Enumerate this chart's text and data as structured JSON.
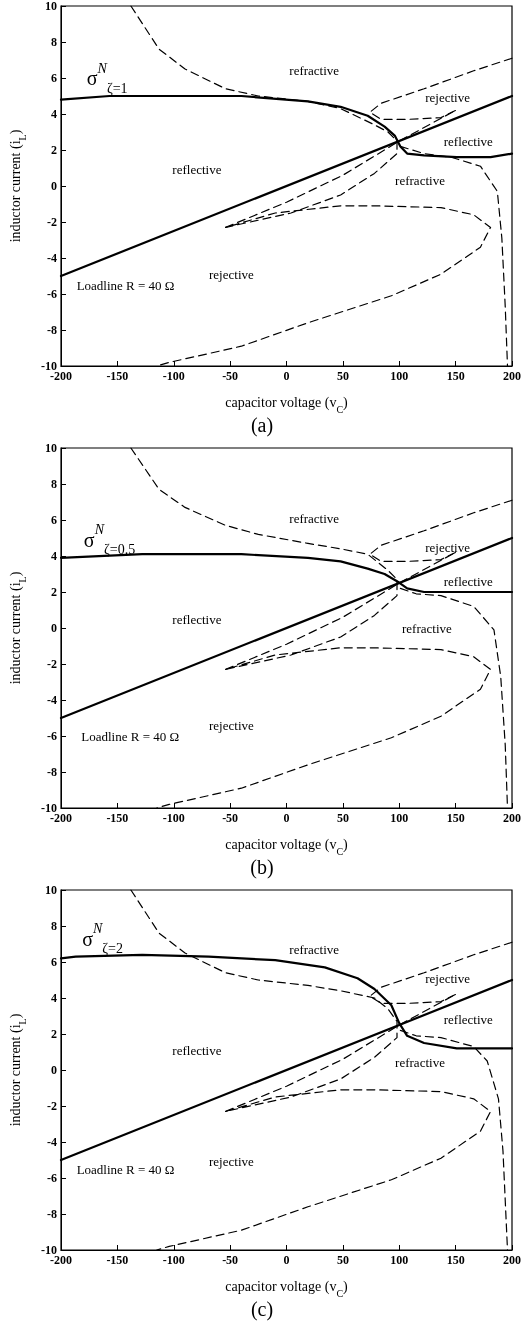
{
  "chart_data": [
    {
      "type": "line",
      "title": "(a)",
      "xlabel": "capacitor voltage (v$_{C}$)",
      "ylabel": "inductor current (i$_{L}$)",
      "xlim": [
        -200,
        200
      ],
      "ylim": [
        -10,
        10
      ],
      "xticks": [
        -200,
        -150,
        -100,
        -50,
        0,
        50,
        100,
        150,
        200
      ],
      "yticks": [
        -10,
        -8,
        -6,
        -4,
        -2,
        0,
        2,
        4,
        6,
        8,
        10
      ],
      "grid": false,
      "marker": "none",
      "series": [
        {
          "color": "#000000",
          "line_style": "solid",
          "x": [
            -200,
            200
          ],
          "values": [
            -5,
            5
          ]
        },
        {
          "color": "#000000",
          "line_style": "solid",
          "x": [
            -200,
            -157,
            -98,
            -40,
            19,
            48,
            72,
            87,
            96,
            101,
            107,
            122,
            151,
            181,
            200
          ],
          "values": [
            4.8,
            5.0,
            5.0,
            5.0,
            4.7,
            4.4,
            3.9,
            3.3,
            2.8,
            2.2,
            1.8,
            1.7,
            1.6,
            1.6,
            1.8
          ]
        },
        {
          "color": "#000000",
          "line_style": "dashed",
          "x": [
            -138,
            -113,
            -90,
            -54,
            -25,
            19,
            48,
            78,
            90,
            98,
            98,
            78,
            48,
            4,
            -54,
            -10,
            48,
            78,
            137,
            166,
            181,
            172,
            137,
            93,
            19,
            -40,
            -104,
            -115
          ],
          "values": [
            10,
            7.6,
            6.5,
            5.4,
            5.0,
            4.7,
            4.3,
            3.4,
            3.0,
            2.5,
            1.8,
            0.7,
            -0.5,
            -1.5,
            -2.3,
            -1.5,
            -1.1,
            -1.1,
            -1.2,
            -1.6,
            -2.3,
            -3.4,
            -4.9,
            -6.1,
            -7.6,
            -8.9,
            -9.8,
            -10
          ]
        },
        {
          "color": "#000000",
          "line_style": "dashed",
          "x": [
            -54,
            0,
            50,
            100,
            150
          ],
          "values": [
            -2.3,
            -0.9,
            0.6,
            2.5,
            4.2
          ]
        },
        {
          "color": "#000000",
          "line_style": "dashed",
          "x": [
            200,
            166,
            122,
            84,
            74,
            84,
            107,
            137,
            150
          ],
          "values": [
            7.1,
            6.4,
            5.4,
            4.6,
            4.1,
            3.7,
            3.7,
            3.8,
            4.2
          ]
        },
        {
          "color": "#000000",
          "line_style": "dashed",
          "x": [
            101,
            122,
            146,
            172,
            187,
            191,
            194,
            196
          ],
          "values": [
            2.2,
            1.8,
            1.6,
            1.1,
            -0.3,
            -2.9,
            -6.7,
            -10
          ]
        }
      ],
      "annotations": [
        "σ$^{N}$$_{ζ=1}$",
        "refractive",
        "rejective",
        "reflective",
        "reflective",
        "refractive",
        "rejective",
        "Loadline R = 40 Ω"
      ]
    },
    {
      "type": "line",
      "title": "(b)",
      "xlabel": "capacitor voltage (v$_{C}$)",
      "ylabel": "inductor current (i$_{L}$)",
      "xlim": [
        -200,
        200
      ],
      "ylim": [
        -10,
        10
      ],
      "xticks": [
        -200,
        -150,
        -100,
        -50,
        0,
        50,
        100,
        150,
        200
      ],
      "yticks": [
        -10,
        -8,
        -6,
        -4,
        -2,
        0,
        2,
        4,
        6,
        8,
        10
      ],
      "grid": false,
      "marker": "none",
      "series": [
        {
          "color": "#000000",
          "line_style": "solid",
          "x": [
            -200,
            200
          ],
          "values": [
            -5,
            5
          ]
        },
        {
          "color": "#000000",
          "line_style": "solid",
          "x": [
            -200,
            -128,
            -40,
            19,
            48,
            72,
            87,
            98,
            107,
            122,
            151,
            200
          ],
          "values": [
            3.9,
            4.1,
            4.1,
            3.9,
            3.7,
            3.3,
            3.0,
            2.6,
            2.2,
            2.0,
            2.0,
            2.0
          ]
        },
        {
          "color": "#000000",
          "line_style": "dashed",
          "x": [
            -138,
            -113,
            -90,
            -54,
            -25,
            19,
            48,
            72,
            90,
            98,
            98,
            78,
            48,
            4,
            -54,
            -10,
            48,
            78,
            137,
            166,
            181,
            172,
            137,
            93,
            19,
            -40,
            -104,
            -115
          ],
          "values": [
            10,
            7.7,
            6.7,
            5.7,
            5.2,
            4.7,
            4.4,
            4.1,
            3.2,
            2.7,
            1.8,
            0.7,
            -0.5,
            -1.5,
            -2.3,
            -1.5,
            -1.1,
            -1.1,
            -1.2,
            -1.6,
            -2.3,
            -3.4,
            -4.9,
            -6.1,
            -7.6,
            -8.9,
            -9.8,
            -10
          ]
        },
        {
          "color": "#000000",
          "line_style": "dashed",
          "x": [
            -54,
            0,
            50,
            100,
            150
          ],
          "values": [
            -2.3,
            -0.9,
            0.6,
            2.5,
            4.2
          ]
        },
        {
          "color": "#000000",
          "line_style": "dashed",
          "x": [
            200,
            166,
            122,
            84,
            74,
            84,
            107,
            137,
            150
          ],
          "values": [
            7.1,
            6.4,
            5.4,
            4.6,
            4.1,
            3.7,
            3.7,
            3.8,
            4.2
          ]
        },
        {
          "color": "#000000",
          "line_style": "dashed",
          "x": [
            101,
            115,
            137,
            166,
            184,
            190,
            194,
            196
          ],
          "values": [
            2.2,
            1.9,
            1.8,
            1.2,
            -0.1,
            -2.7,
            -6.5,
            -10
          ]
        }
      ],
      "annotations": [
        "σ$^{N}$$_{ζ=0.5}$",
        "refractive",
        "rejective",
        "reflective",
        "reflective",
        "refractive",
        "rejective",
        "Loadline R = 40 Ω"
      ]
    },
    {
      "type": "line",
      "title": "(c)",
      "xlabel": "capacitor voltage (v$_{C}$)",
      "ylabel": "inductor current (i$_{L}$)",
      "xlim": [
        -200,
        200
      ],
      "ylim": [
        -10,
        10
      ],
      "xticks": [
        -200,
        -150,
        -100,
        -50,
        0,
        50,
        100,
        150,
        200
      ],
      "yticks": [
        -10,
        -8,
        -6,
        -4,
        -2,
        0,
        2,
        4,
        6,
        8,
        10
      ],
      "grid": false,
      "marker": "none",
      "series": [
        {
          "color": "#000000",
          "line_style": "solid",
          "x": [
            -200,
            200
          ],
          "values": [
            -5,
            5
          ]
        },
        {
          "color": "#000000",
          "line_style": "solid",
          "x": [
            -200,
            -187,
            -128,
            -69,
            -10,
            34,
            63,
            78,
            93,
            100,
            107,
            122,
            151,
            200
          ],
          "values": [
            6.2,
            6.3,
            6.4,
            6.3,
            6.1,
            5.7,
            5.1,
            4.5,
            3.6,
            2.6,
            1.9,
            1.5,
            1.2,
            1.2
          ]
        },
        {
          "color": "#000000",
          "line_style": "dashed",
          "x": [
            -138,
            -113,
            -90,
            -54,
            -25,
            19,
            48,
            78,
            90,
            98,
            98,
            78,
            48,
            4,
            -54,
            -10,
            48,
            78,
            137,
            166,
            181,
            172,
            137,
            93,
            19,
            -40,
            -104,
            -115
          ],
          "values": [
            10,
            7.6,
            6.5,
            5.4,
            5.0,
            4.7,
            4.4,
            4.0,
            3.4,
            2.7,
            1.8,
            0.7,
            -0.5,
            -1.5,
            -2.3,
            -1.5,
            -1.1,
            -1.1,
            -1.2,
            -1.6,
            -2.3,
            -3.4,
            -4.9,
            -6.1,
            -7.6,
            -8.9,
            -9.8,
            -10
          ]
        },
        {
          "color": "#000000",
          "line_style": "dashed",
          "x": [
            -54,
            0,
            50,
            100,
            150
          ],
          "values": [
            -2.3,
            -0.9,
            0.6,
            2.5,
            4.2
          ]
        },
        {
          "color": "#000000",
          "line_style": "dashed",
          "x": [
            200,
            166,
            122,
            84,
            74,
            84,
            107,
            137,
            150
          ],
          "values": [
            7.1,
            6.4,
            5.4,
            4.6,
            4.1,
            3.7,
            3.7,
            3.8,
            4.2
          ]
        },
        {
          "color": "#000000",
          "line_style": "dashed",
          "x": [
            101,
            115,
            137,
            166,
            178,
            188,
            192,
            196
          ],
          "values": [
            2.2,
            1.9,
            1.8,
            1.3,
            0.5,
            -1.6,
            -4.5,
            -10
          ]
        }
      ],
      "annotations": [
        "σ$^{N}$$_{ζ=2}$",
        "refractive",
        "rejective",
        "reflective",
        "reflective",
        "refractive",
        "rejective",
        "Loadline R = 40 Ω"
      ]
    }
  ]
}
